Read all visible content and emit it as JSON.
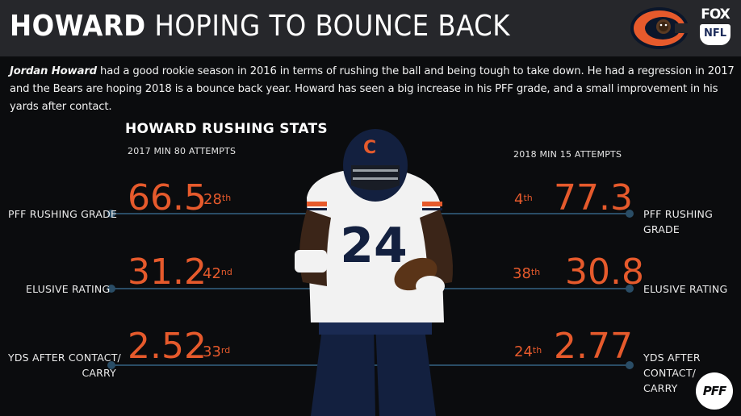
{
  "header": {
    "title_bold": "HOWARD",
    "title_rest": "HOPING TO BOUNCE BACK",
    "fox_text": "FOX",
    "nfl_text": "NFL"
  },
  "intro": {
    "name": "Jordan Howard",
    "text": " had a good rookie season in 2016 in terms of rushing the ball and being tough to take down. He had a regression in 2017 and the Bears are hoping 2018 is a bounce back year. Howard has seen a big increase in his PFF grade, and a small improvement in his yards after contact."
  },
  "stats": {
    "title": "HOWARD RUSHING STATS",
    "left_sub": "2017  MIN 80 ATTEMPTS",
    "right_sub": "2018  MIN 15 ATTEMPTS",
    "rows": [
      {
        "label": "PFF RUSHING GRADE",
        "left_value": "66.5",
        "left_rank": "28",
        "left_suffix": "th",
        "right_value": "77.3",
        "right_rank": "4",
        "right_suffix": "th"
      },
      {
        "label": "ELUSIVE RATING",
        "left_value": "31.2",
        "left_rank": "42",
        "left_suffix": "nd",
        "right_value": "30.8",
        "right_rank": "38",
        "right_suffix": "th"
      },
      {
        "label_line1": "YDS AFTER CONTACT/",
        "label_line2": "CARRY",
        "left_value": "2.52",
        "left_rank": "33",
        "left_suffix": "rd",
        "right_value": "2.77",
        "right_rank": "24",
        "right_suffix": "th"
      }
    ]
  },
  "player": {
    "jersey_number": "24"
  },
  "pff_logo": "PFF",
  "colors": {
    "accent": "#e65a2c",
    "line": "#2a4d66",
    "header_bg": "#26272b",
    "background": "#0b0c0e"
  }
}
